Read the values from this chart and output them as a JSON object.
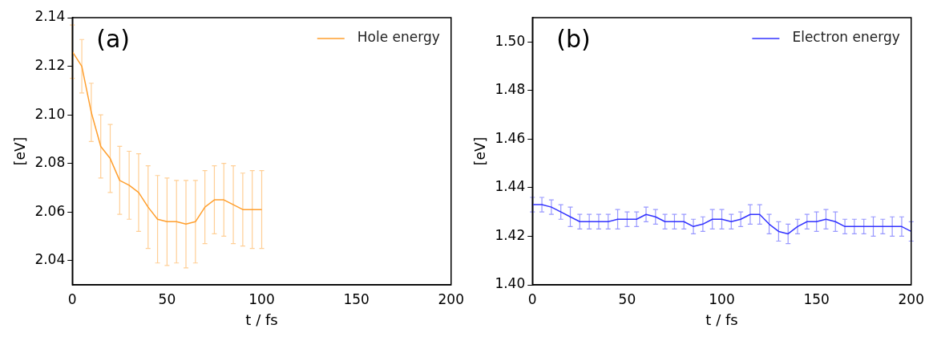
{
  "chart_data": [
    {
      "type": "line",
      "annotations": [
        "(a)"
      ],
      "xlabel": "t / fs",
      "ylabel": "[eV]",
      "x": [
        0,
        5,
        10,
        15,
        20,
        25,
        30,
        35,
        40,
        45,
        50,
        55,
        60,
        65,
        70,
        75,
        80,
        85,
        90,
        95,
        100
      ],
      "xlim": [
        0,
        200
      ],
      "xticks": [
        0,
        50,
        100,
        150,
        200
      ],
      "ylim": [
        2.03,
        2.14
      ],
      "yticks": [
        2.04,
        2.06,
        2.08,
        {
          "value": 2.1,
          "label": "2.10"
        },
        2.12,
        2.14
      ],
      "legend": "top right",
      "grid": false,
      "marker": "none",
      "line_style": "solid",
      "series": [
        {
          "name": "Hole energy",
          "color": "#ff9f2e",
          "values": [
            2.126,
            2.12,
            2.101,
            2.087,
            2.082,
            2.073,
            2.071,
            2.068,
            2.062,
            2.057,
            2.056,
            2.056,
            2.055,
            2.056,
            2.062,
            2.065,
            2.065,
            2.063,
            2.061,
            2.061,
            2.061
          ],
          "errors": [
            0.011,
            0.011,
            0.012,
            0.013,
            0.014,
            0.014,
            0.014,
            0.016,
            0.017,
            0.018,
            0.018,
            0.017,
            0.018,
            0.017,
            0.015,
            0.014,
            0.015,
            0.016,
            0.015,
            0.016,
            0.016
          ]
        }
      ]
    },
    {
      "type": "line",
      "annotations": [
        "(b)"
      ],
      "xlabel": "t / fs",
      "ylabel": "[eV]",
      "x": [
        0,
        5,
        10,
        15,
        20,
        25,
        30,
        35,
        40,
        45,
        50,
        55,
        60,
        65,
        70,
        75,
        80,
        85,
        90,
        95,
        100,
        105,
        110,
        115,
        120,
        125,
        130,
        135,
        140,
        145,
        150,
        155,
        160,
        165,
        170,
        175,
        180,
        185,
        190,
        195,
        200
      ],
      "xlim": [
        0,
        200
      ],
      "xticks": [
        0,
        50,
        100,
        150,
        200
      ],
      "ylim": [
        1.4,
        1.51
      ],
      "yticks": [
        {
          "value": 1.4,
          "label": "1.40"
        },
        1.42,
        1.44,
        1.46,
        1.48,
        {
          "value": 1.5,
          "label": "1.50"
        }
      ],
      "legend": "top right",
      "grid": false,
      "marker": "none",
      "line_style": "solid",
      "series": [
        {
          "name": "Electron energy",
          "color": "#3333ff",
          "values": [
            1.433,
            1.433,
            1.432,
            1.43,
            1.428,
            1.426,
            1.426,
            1.426,
            1.426,
            1.427,
            1.427,
            1.427,
            1.429,
            1.428,
            1.426,
            1.426,
            1.426,
            1.424,
            1.425,
            1.427,
            1.427,
            1.426,
            1.427,
            1.429,
            1.429,
            1.425,
            1.422,
            1.421,
            1.424,
            1.426,
            1.426,
            1.427,
            1.426,
            1.424,
            1.424,
            1.424,
            1.424,
            1.424,
            1.424,
            1.424,
            1.422
          ],
          "errors": [
            0.003,
            0.003,
            0.003,
            0.003,
            0.004,
            0.003,
            0.003,
            0.003,
            0.003,
            0.004,
            0.003,
            0.003,
            0.003,
            0.003,
            0.003,
            0.003,
            0.003,
            0.003,
            0.003,
            0.004,
            0.004,
            0.003,
            0.003,
            0.004,
            0.004,
            0.004,
            0.004,
            0.004,
            0.003,
            0.003,
            0.004,
            0.004,
            0.004,
            0.003,
            0.003,
            0.003,
            0.004,
            0.003,
            0.004,
            0.004,
            0.004
          ]
        }
      ]
    }
  ]
}
